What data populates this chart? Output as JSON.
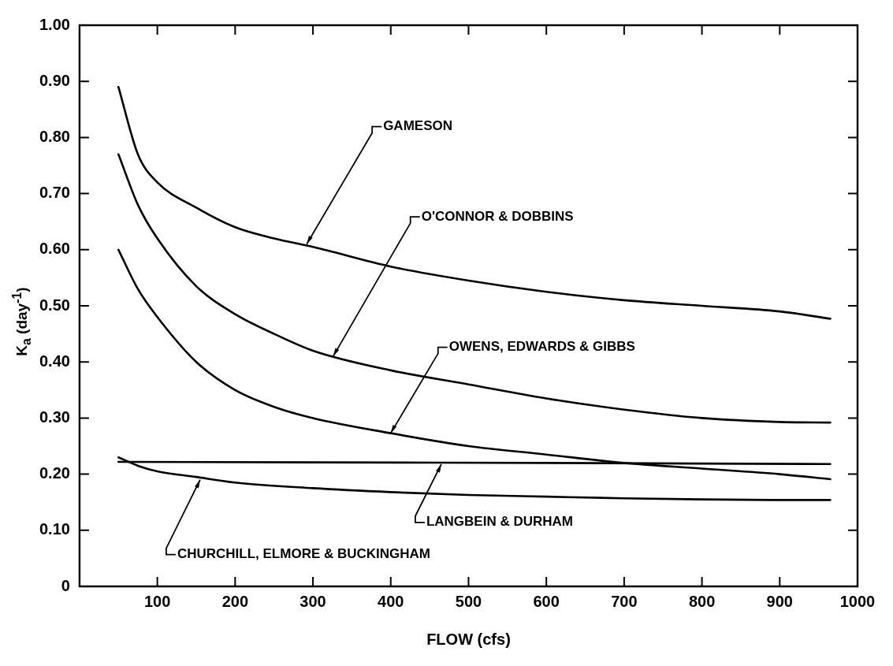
{
  "chart_data": {
    "type": "line",
    "xlabel": "FLOW (cfs)",
    "ylabel": "K$_{a}$ (day$^{-1}$)",
    "xlim": [
      0,
      1000
    ],
    "xticks": [
      100,
      200,
      300,
      400,
      500,
      600,
      700,
      800,
      900,
      1000
    ],
    "ylim": [
      0,
      1
    ],
    "yticks": [
      {
        "value": 0,
        "label": "0"
      },
      {
        "value": 0.1,
        "label": "0.10"
      },
      {
        "value": 0.2,
        "label": "0.20"
      },
      {
        "value": 0.3,
        "label": "0.30"
      },
      {
        "value": 0.4,
        "label": "0.40"
      },
      {
        "value": 0.5,
        "label": "0.50"
      },
      {
        "value": 0.6,
        "label": "0.60"
      },
      {
        "value": 0.7,
        "label": "0.70"
      },
      {
        "value": 0.8,
        "label": "0.80"
      },
      {
        "value": 0.9,
        "label": "0.90"
      },
      {
        "value": 1,
        "label": "1.00"
      }
    ],
    "grid": false,
    "legend": false,
    "marker": "none",
    "line_style": "solid",
    "series": [
      {
        "color": "#000000",
        "x": [
          50,
          75,
          100,
          150,
          200,
          250,
          300,
          400,
          500,
          600,
          700,
          800,
          900,
          965
        ],
        "values": [
          0.89,
          0.77,
          0.72,
          0.675,
          0.64,
          0.62,
          0.605,
          0.57,
          0.545,
          0.525,
          0.51,
          0.5,
          0.49,
          0.477
        ]
      },
      {
        "color": "#000000",
        "x": [
          50,
          75,
          100,
          150,
          200,
          250,
          300,
          400,
          500,
          600,
          700,
          800,
          900,
          965
        ],
        "values": [
          0.77,
          0.68,
          0.62,
          0.535,
          0.485,
          0.45,
          0.42,
          0.385,
          0.36,
          0.335,
          0.315,
          0.3,
          0.293,
          0.292
        ]
      },
      {
        "color": "#000000",
        "x": [
          50,
          75,
          100,
          150,
          200,
          250,
          300,
          400,
          500,
          600,
          700,
          800,
          900,
          965
        ],
        "values": [
          0.6,
          0.53,
          0.48,
          0.4,
          0.35,
          0.32,
          0.3,
          0.273,
          0.25,
          0.235,
          0.22,
          0.21,
          0.2,
          0.191
        ]
      },
      {
        "color": "#000000",
        "x": [
          50,
          300,
          600,
          965
        ],
        "values": [
          0.222,
          0.221,
          0.22,
          0.218
        ]
      },
      {
        "color": "#000000",
        "x": [
          50,
          75,
          100,
          150,
          200,
          300,
          400,
          500,
          600,
          700,
          800,
          900,
          965
        ],
        "values": [
          0.23,
          0.215,
          0.205,
          0.195,
          0.185,
          0.175,
          0.168,
          0.163,
          0.16,
          0.157,
          0.155,
          0.154,
          0.154
        ]
      }
    ],
    "annotations": [
      {
        "text": "GAMESON",
        "x": 292,
        "y": 0.61
      },
      {
        "text": "O'CONNOR & DOBBINS",
        "x": 326,
        "y": 0.41
      },
      {
        "text": "OWENS, EDWARDS & GIBBS",
        "x": 400,
        "y": 0.273
      },
      {
        "text": "LANGBEIN & DURHAM",
        "x": 465,
        "y": 0.218
      },
      {
        "text": "CHURCHILL, ELMORE & BUCKINGHAM",
        "x": 155,
        "y": 0.19
      }
    ]
  }
}
